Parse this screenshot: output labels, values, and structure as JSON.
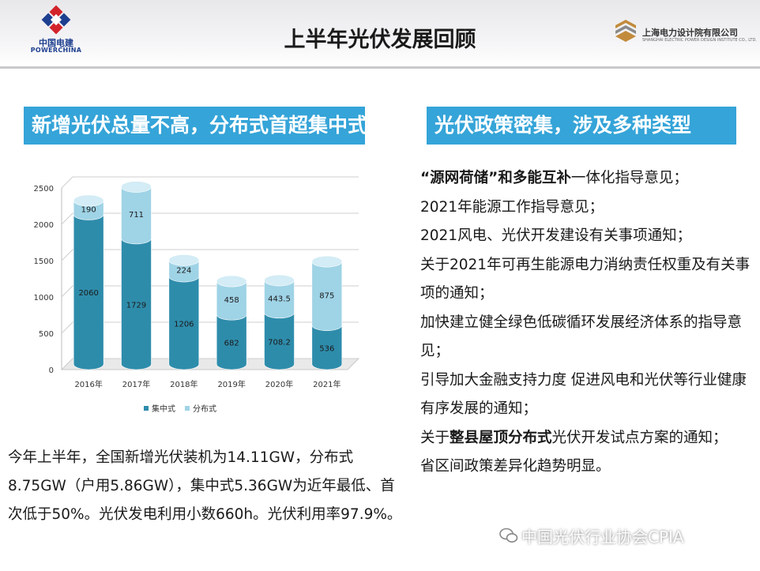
{
  "header": {
    "title": "上半年光伏发展回顾",
    "left_logo": {
      "name": "中国电建",
      "sub": "POWERCHINA"
    },
    "right_logo": {
      "name": "上海电力设计院有限公司",
      "sub": "SHANGHAI ELECTRIC POWER DESIGN INSTITUTE CO., LTD."
    }
  },
  "left_banner": "新增光伏总量不高，分布式首超集中式",
  "right_banner": "光伏政策密集，涉及多种类型",
  "chart_data": {
    "type": "bar",
    "stacked": true,
    "categories": [
      "2016年",
      "2017年",
      "2018年",
      "2019年",
      "2020年",
      "2021年"
    ],
    "series": [
      {
        "name": "集中式",
        "values": [
          2060,
          1729,
          1206,
          682,
          708.2,
          536
        ],
        "labels": [
          "2060",
          "1729",
          "1206",
          "682",
          "708.2",
          "536"
        ],
        "color": "#2e8cab"
      },
      {
        "name": "分布式",
        "values": [
          190,
          711,
          224,
          458,
          443.5,
          875
        ],
        "labels": [
          "190",
          "711",
          "224",
          "458",
          "443.5",
          "875"
        ],
        "color": "#9fd3e6"
      }
    ],
    "yticks": [
      "0",
      "500",
      "1000",
      "1500",
      "2000",
      "2500"
    ],
    "ylim": [
      0,
      2500
    ],
    "legend_position": "bottom",
    "grid": true
  },
  "summary": "今年上半年，全国新增光伏装机为14.11GW，分布式8.75GW（户用5.86GW），集中式5.36GW为近年最低、首次低于50%。光伏发电利用小数660h。光伏利用率97.9%。",
  "policies": [
    {
      "bold": "“源网荷储”和多能互补",
      "text": "一体化指导意见；"
    },
    {
      "bold": "",
      "text": "2021年能源工作指导意见；"
    },
    {
      "bold": "",
      "text": "2021风电、光伏开发建设有关事项通知；"
    },
    {
      "bold": "",
      "text": "关于2021年可再生能源电力消纳责任权重及有关事项的通知；"
    },
    {
      "bold": "",
      "text": "加快建立健全绿色低碳循环发展经济体系的指导意见；"
    },
    {
      "bold": "",
      "text": "引导加大金融支持力度 促进风电和光伏等行业健康有序发展的通知；"
    },
    {
      "pre": "关于",
      "bold": "整县屋顶分布式",
      "text": "光伏开发试点方案的通知；"
    },
    {
      "bold": "",
      "text": "省区间政策差异化趋势明显。"
    }
  ],
  "watermark": "中国光伏行业协会CPIA",
  "colors": {
    "banner": "#35a4d8",
    "brand_red": "#d3232a",
    "brand_blue": "#1d3f8f"
  }
}
